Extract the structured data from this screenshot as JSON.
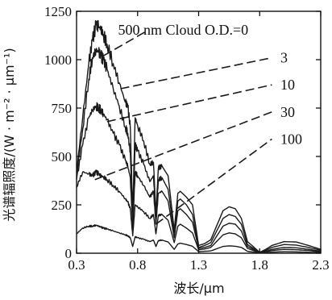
{
  "chart_data": {
    "type": "line",
    "title": "",
    "xlabel": "波长/μm",
    "ylabel": "光谱辐照度/(W · m⁻² · μm⁻¹)",
    "xlim": [
      0.3,
      2.3
    ],
    "ylim": [
      0,
      1250
    ],
    "xticks": [
      "0.3",
      "0.8",
      "1.3",
      "1.8",
      "2.3"
    ],
    "yticks": [
      "0",
      "250",
      "500",
      "750",
      "1000",
      "1250"
    ],
    "grid": false,
    "legend": "none",
    "annotation_header": "500 nm Cloud O.D.=",
    "series": [
      {
        "name": "0",
        "x": [
          0.3,
          0.35,
          0.4,
          0.43,
          0.46,
          0.48,
          0.5,
          0.52,
          0.55,
          0.6,
          0.65,
          0.7,
          0.72,
          0.74,
          0.76,
          0.78,
          0.8,
          0.85,
          0.9,
          0.93,
          0.95,
          0.97,
          1.0,
          1.05,
          1.1,
          1.13,
          1.15,
          1.2,
          1.25,
          1.3,
          1.35,
          1.4,
          1.5,
          1.55,
          1.6,
          1.65,
          1.7,
          1.8,
          1.85,
          1.9,
          2.0,
          2.1,
          2.2,
          2.3
        ],
        "values": [
          420,
          700,
          980,
          1100,
          1180,
          1170,
          1160,
          1130,
          1080,
          980,
          880,
          780,
          760,
          650,
          200,
          700,
          660,
          580,
          460,
          470,
          200,
          440,
          450,
          400,
          120,
          310,
          320,
          290,
          250,
          40,
          50,
          70,
          220,
          240,
          230,
          180,
          60,
          5,
          20,
          40,
          60,
          58,
          40,
          20
        ]
      },
      {
        "name": "3",
        "x": [
          0.3,
          0.35,
          0.4,
          0.43,
          0.46,
          0.48,
          0.5,
          0.52,
          0.55,
          0.6,
          0.65,
          0.7,
          0.72,
          0.74,
          0.76,
          0.78,
          0.8,
          0.85,
          0.9,
          0.93,
          0.95,
          0.97,
          1.0,
          1.05,
          1.1,
          1.13,
          1.15,
          1.2,
          1.25,
          1.3,
          1.35,
          1.4,
          1.5,
          1.55,
          1.6,
          1.65,
          1.7,
          1.8,
          1.85,
          1.9,
          2.0,
          2.1,
          2.2,
          2.3
        ],
        "values": [
          400,
          640,
          900,
          1010,
          1050,
          1040,
          1020,
          1000,
          950,
          850,
          760,
          650,
          620,
          520,
          160,
          560,
          530,
          460,
          370,
          400,
          180,
          380,
          390,
          330,
          100,
          270,
          280,
          250,
          200,
          30,
          40,
          55,
          180,
          200,
          190,
          150,
          45,
          4,
          15,
          30,
          45,
          42,
          30,
          15
        ]
      },
      {
        "name": "10",
        "x": [
          0.3,
          0.35,
          0.4,
          0.43,
          0.46,
          0.48,
          0.5,
          0.52,
          0.55,
          0.6,
          0.65,
          0.7,
          0.72,
          0.74,
          0.76,
          0.78,
          0.8,
          0.85,
          0.9,
          0.93,
          0.95,
          0.97,
          1.0,
          1.05,
          1.1,
          1.13,
          1.15,
          1.2,
          1.25,
          1.3,
          1.35,
          1.4,
          1.5,
          1.55,
          1.6,
          1.65,
          1.7,
          1.8,
          1.85,
          1.9,
          2.0,
          2.1,
          2.2,
          2.3
        ],
        "values": [
          380,
          560,
          700,
          740,
          760,
          750,
          740,
          720,
          690,
          620,
          560,
          480,
          450,
          390,
          130,
          420,
          400,
          350,
          290,
          320,
          150,
          310,
          320,
          270,
          80,
          220,
          230,
          200,
          160,
          25,
          30,
          40,
          140,
          155,
          150,
          115,
          35,
          3,
          10,
          20,
          30,
          28,
          20,
          10
        ]
      },
      {
        "name": "30",
        "x": [
          0.3,
          0.35,
          0.4,
          0.43,
          0.46,
          0.48,
          0.5,
          0.52,
          0.55,
          0.6,
          0.65,
          0.7,
          0.72,
          0.74,
          0.76,
          0.78,
          0.8,
          0.85,
          0.9,
          0.93,
          0.95,
          0.97,
          1.0,
          1.05,
          1.1,
          1.13,
          1.15,
          1.2,
          1.25,
          1.3,
          1.35,
          1.4,
          1.5,
          1.55,
          1.6,
          1.65,
          1.7,
          1.8,
          1.85,
          1.9,
          2.0,
          2.1,
          2.2,
          2.3
        ],
        "values": [
          340,
          420,
          410,
          400,
          420,
          410,
          400,
          395,
          380,
          350,
          320,
          280,
          265,
          230,
          90,
          250,
          240,
          215,
          180,
          200,
          100,
          195,
          200,
          170,
          55,
          140,
          150,
          130,
          105,
          18,
          22,
          30,
          95,
          105,
          100,
          80,
          25,
          2,
          7,
          14,
          20,
          18,
          14,
          7
        ]
      },
      {
        "name": "100",
        "x": [
          0.3,
          0.35,
          0.4,
          0.43,
          0.46,
          0.48,
          0.5,
          0.52,
          0.55,
          0.6,
          0.65,
          0.7,
          0.72,
          0.74,
          0.76,
          0.78,
          0.8,
          0.85,
          0.9,
          0.93,
          0.95,
          0.97,
          1.0,
          1.05,
          1.1,
          1.13,
          1.15,
          1.2,
          1.25,
          1.3,
          1.35,
          1.4,
          1.5,
          1.55,
          1.6,
          1.65,
          1.7,
          1.8,
          1.85,
          1.9,
          2.0,
          2.1,
          2.2,
          2.3
        ],
        "values": [
          100,
          130,
          140,
          140,
          145,
          140,
          135,
          130,
          125,
          115,
          105,
          95,
          90,
          80,
          35,
          85,
          80,
          72,
          60,
          68,
          35,
          65,
          68,
          58,
          20,
          48,
          52,
          45,
          36,
          8,
          10,
          12,
          35,
          38,
          36,
          30,
          10,
          1,
          3,
          6,
          8,
          7,
          5,
          3
        ]
      }
    ],
    "annotations": [
      {
        "series": "0",
        "text": "500 nm Cloud O.D.=0",
        "text_x": 0.64,
        "text_y": 1155,
        "point": [
          0.52,
          1020
        ],
        "label": [
          0.88,
          1150
        ]
      },
      {
        "series": "3",
        "text": "3",
        "text_x": 1.97,
        "text_y": 1010,
        "point": [
          0.66,
          850
        ],
        "label": [
          1.9,
          1010
        ]
      },
      {
        "series": "10",
        "text": "10",
        "text_x": 1.97,
        "text_y": 870,
        "point": [
          0.55,
          680
        ],
        "label": [
          1.9,
          870
        ]
      },
      {
        "series": "30",
        "text": "30",
        "text_x": 1.97,
        "text_y": 730,
        "point": [
          0.45,
          380
        ],
        "label": [
          1.9,
          730
        ]
      },
      {
        "series": "100",
        "text": "100",
        "text_x": 1.97,
        "text_y": 590,
        "point": [
          0.95,
          150
        ],
        "label": [
          1.9,
          590
        ]
      }
    ]
  }
}
